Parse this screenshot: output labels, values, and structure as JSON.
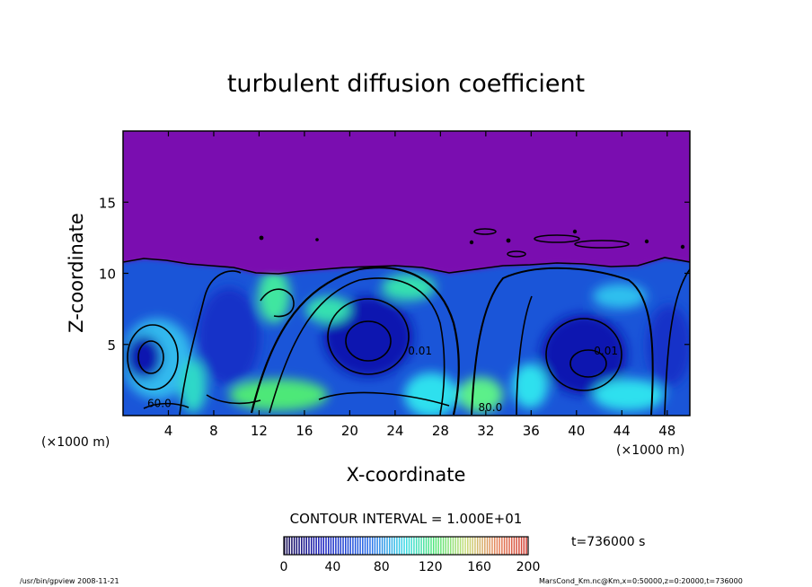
{
  "chart_data": {
    "type": "heatmap",
    "title": "turbulent diffusion coefficient",
    "xlabel": "X-coordinate",
    "ylabel": "Z-coordinate",
    "x_unit_left": "(×1000 m)",
    "x_unit_right": "(×1000 m)",
    "xlim": [
      0,
      50
    ],
    "ylim": [
      0,
      20
    ],
    "x_ticks": [
      4,
      8,
      12,
      16,
      20,
      24,
      28,
      32,
      36,
      40,
      44,
      48
    ],
    "y_ticks": [
      5,
      10,
      15
    ],
    "contour_interval": "CONTOUR INTERVAL = 1.000E+01",
    "time_label": "t=736000 s",
    "colorbar": {
      "ticks": [
        0,
        40,
        80,
        120,
        160,
        200
      ],
      "range": [
        0,
        200
      ]
    },
    "colors": {
      "background": "#7a0cb0",
      "low": "#0b1fb8",
      "mid": "#1f74e6",
      "cyan": "#30e6f0",
      "green": "#4ef07c",
      "contour": "#000000"
    },
    "contour_labels": [
      {
        "text": "60.0",
        "x": 3.2,
        "y": 0.6
      },
      {
        "text": "0.01",
        "x": 26.2,
        "y": 4.3
      },
      {
        "text": "0.01",
        "x": 42.6,
        "y": 4.3
      },
      {
        "text": "80.0",
        "x": 32.4,
        "y": 0.3
      }
    ]
  },
  "footer": {
    "left": "/usr/bin/gpview   2008-11-21",
    "right": "MarsCond_Km.nc@Km,x=0:50000,z=0:20000,t=736000"
  }
}
